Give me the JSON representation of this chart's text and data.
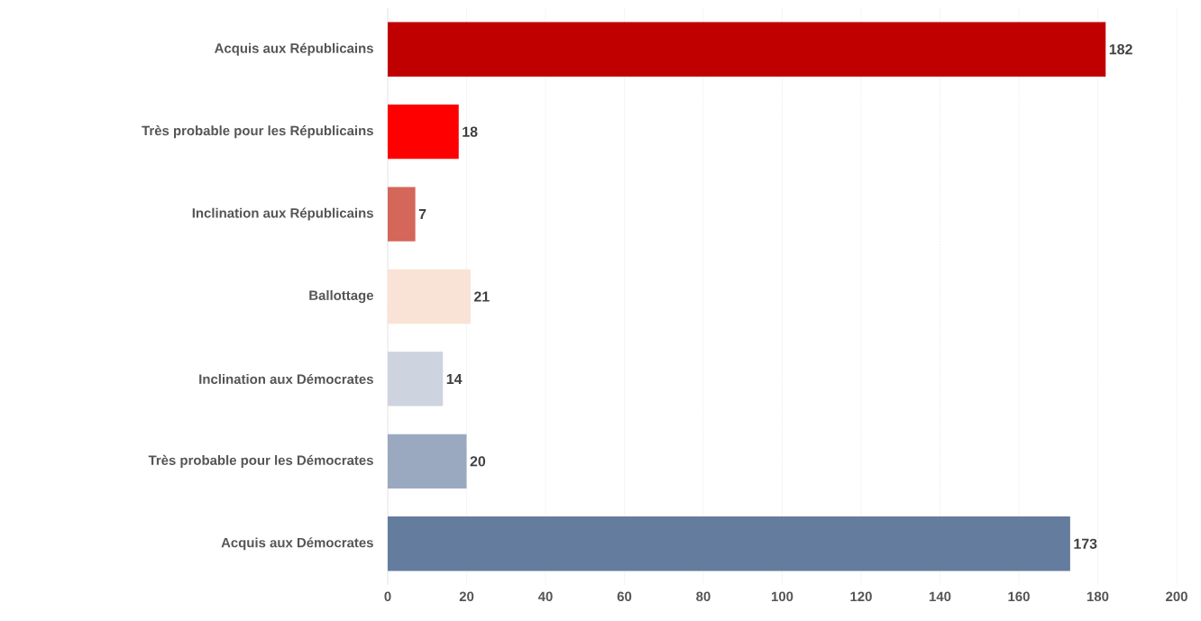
{
  "chart_data": {
    "type": "bar",
    "orientation": "horizontal",
    "categories": [
      "Acquis aux Républicains",
      "Très probable pour les Républicains",
      "Inclination aux Républicains",
      "Ballottage",
      "Inclination aux Démocrates",
      "Très probable pour les Démocrates",
      "Acquis aux Démocrates"
    ],
    "values": [
      182,
      18,
      7,
      21,
      14,
      20,
      173
    ],
    "colors": [
      "#c00000",
      "#ff0000",
      "#d4665a",
      "#f9e2d6",
      "#cdd3df",
      "#9aa9c0",
      "#647c9d"
    ],
    "xlim": [
      0,
      200
    ],
    "xticks": [
      0,
      20,
      40,
      60,
      80,
      100,
      120,
      140,
      160,
      180,
      200
    ],
    "grid": "x",
    "data_labels": true
  }
}
